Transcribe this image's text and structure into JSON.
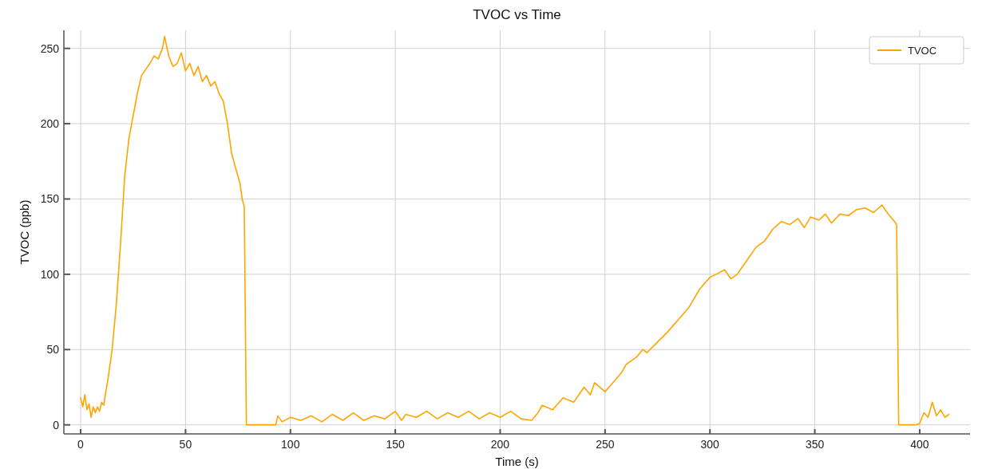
{
  "chart_data": {
    "type": "line",
    "title": "TVOC vs Time",
    "xlabel": "Time (s)",
    "ylabel": "TVOC (ppb)",
    "xlim": [
      -8,
      424
    ],
    "xticks": [
      0,
      50,
      100,
      150,
      200,
      250,
      300,
      350,
      400
    ],
    "ylim": [
      -6,
      262
    ],
    "yticks": [
      0,
      50,
      100,
      150,
      200,
      250
    ],
    "grid": true,
    "legend": "top right",
    "line_style": "solid",
    "marker": "none",
    "series": [
      {
        "name": "TVOC",
        "color": "#ffa500",
        "x": [
          0,
          1,
          2,
          3,
          4,
          5,
          6,
          7,
          8,
          9,
          10,
          11,
          12,
          13,
          15,
          17,
          19,
          21,
          23,
          25,
          27,
          29,
          31,
          33,
          35,
          37,
          39,
          40,
          42,
          44,
          46,
          48,
          50,
          52,
          54,
          56,
          58,
          60,
          62,
          64,
          66,
          68,
          70,
          72,
          74,
          76,
          77,
          78,
          79,
          85,
          93,
          94,
          96,
          100,
          105,
          110,
          115,
          120,
          125,
          130,
          135,
          140,
          145,
          150,
          153,
          155,
          160,
          165,
          170,
          175,
          180,
          185,
          190,
          195,
          200,
          205,
          210,
          215,
          218,
          220,
          225,
          230,
          235,
          240,
          243,
          245,
          250,
          255,
          258,
          260,
          265,
          268,
          270,
          275,
          280,
          285,
          290,
          295,
          300,
          303,
          307,
          310,
          313,
          318,
          322,
          326,
          330,
          334,
          338,
          342,
          345,
          348,
          352,
          355,
          358,
          362,
          366,
          370,
          374,
          378,
          382,
          385,
          388,
          389,
          390,
          395,
          398,
          400,
          402,
          404,
          406,
          408,
          410,
          412,
          414
        ],
        "values": [
          18,
          12,
          20,
          10,
          14,
          5,
          12,
          8,
          12,
          9,
          15,
          13,
          22,
          30,
          50,
          80,
          120,
          165,
          190,
          205,
          220,
          232,
          236,
          240,
          245,
          243,
          250,
          258,
          245,
          238,
          240,
          247,
          235,
          240,
          232,
          238,
          228,
          232,
          225,
          228,
          220,
          215,
          200,
          180,
          170,
          160,
          150,
          145,
          0,
          0,
          0,
          6,
          2,
          5,
          3,
          6,
          2,
          7,
          3,
          8,
          3,
          6,
          4,
          9,
          3,
          7,
          5,
          9,
          4,
          8,
          5,
          9,
          4,
          8,
          5,
          9,
          4,
          3,
          8,
          13,
          10,
          18,
          15,
          25,
          20,
          28,
          22,
          30,
          35,
          40,
          45,
          50,
          48,
          55,
          62,
          70,
          78,
          90,
          98,
          100,
          103,
          97,
          100,
          110,
          118,
          122,
          130,
          135,
          133,
          137,
          131,
          138,
          136,
          140,
          134,
          140,
          139,
          143,
          144,
          141,
          146,
          140,
          135,
          133,
          0,
          0,
          0,
          1,
          8,
          5,
          15,
          6,
          10,
          5,
          7
        ]
      }
    ]
  }
}
